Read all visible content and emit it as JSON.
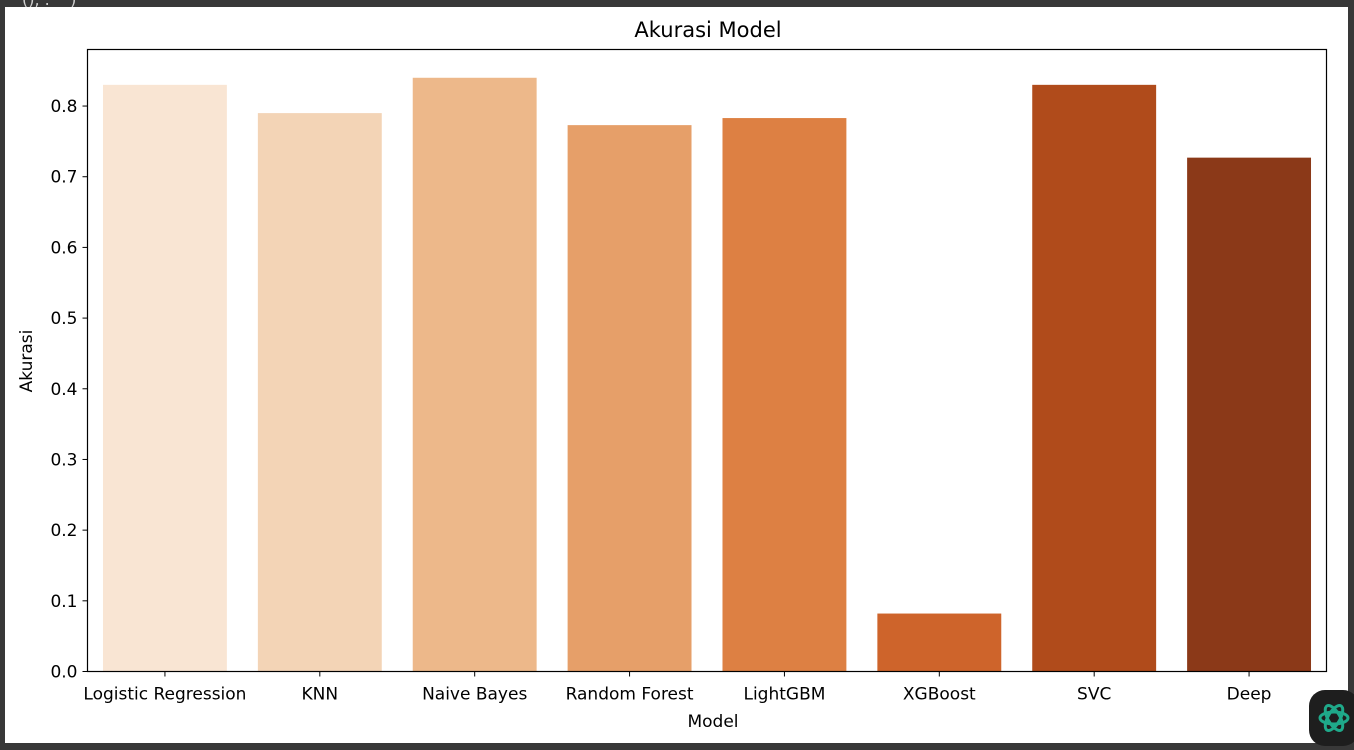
{
  "cell_output_fragment": "(), .    )",
  "chart_data": {
    "type": "bar",
    "title": "Akurasi Model",
    "xlabel": "Model",
    "ylabel": "Akurasi",
    "categories": [
      "Logistic Regression",
      "KNN",
      "Naive Bayes",
      "Random Forest",
      "LightGBM",
      "XGBoost",
      "SVC",
      "Deep"
    ],
    "values": [
      0.83,
      0.79,
      0.84,
      0.773,
      0.783,
      0.082,
      0.83,
      0.727
    ],
    "colors": [
      "#F9E5D3",
      "#F3D4B6",
      "#EDB88A",
      "#E69F69",
      "#DD8043",
      "#CE642B",
      "#B04B1B",
      "#8B3918"
    ],
    "ylim": [
      0,
      0.88
    ],
    "yticks": [
      0.0,
      0.1,
      0.2,
      0.3,
      0.4,
      0.5,
      0.6,
      0.7,
      0.8
    ],
    "ytick_labels": [
      "0.0",
      "0.1",
      "0.2",
      "0.3",
      "0.4",
      "0.5",
      "0.6",
      "0.7",
      "0.8"
    ],
    "grid": false,
    "legend": "none"
  },
  "assistant_badge": {
    "icon": "spark-knot-icon",
    "color": "#1fa98a"
  }
}
